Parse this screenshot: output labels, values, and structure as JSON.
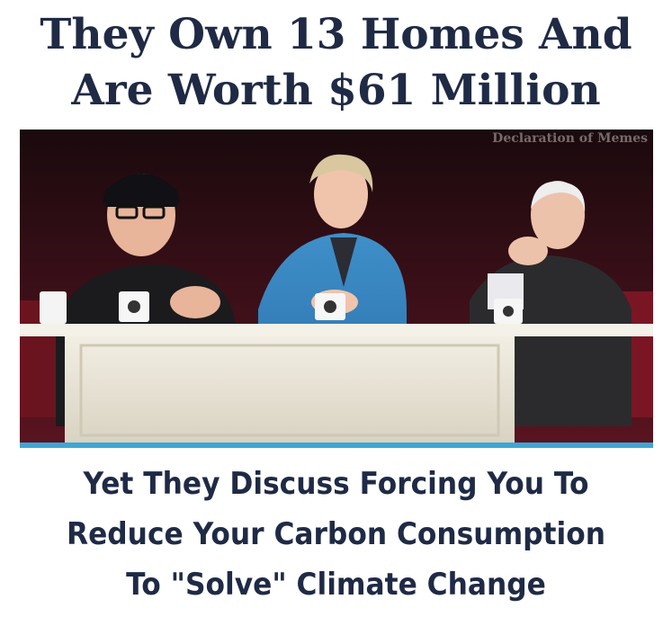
{
  "meme": {
    "top_caption": [
      "They Own 13 Homes And",
      "Are Worth $61 Million"
    ],
    "watermark": "Declaration of Memes",
    "bottom_caption": [
      "Yet They Discuss Forcing You To",
      "Reduce Your Carbon Consumption",
      "To \"Solve\" Climate Change"
    ]
  },
  "colors": {
    "caption_text": "#1f2a45",
    "background": "#ffffff"
  }
}
